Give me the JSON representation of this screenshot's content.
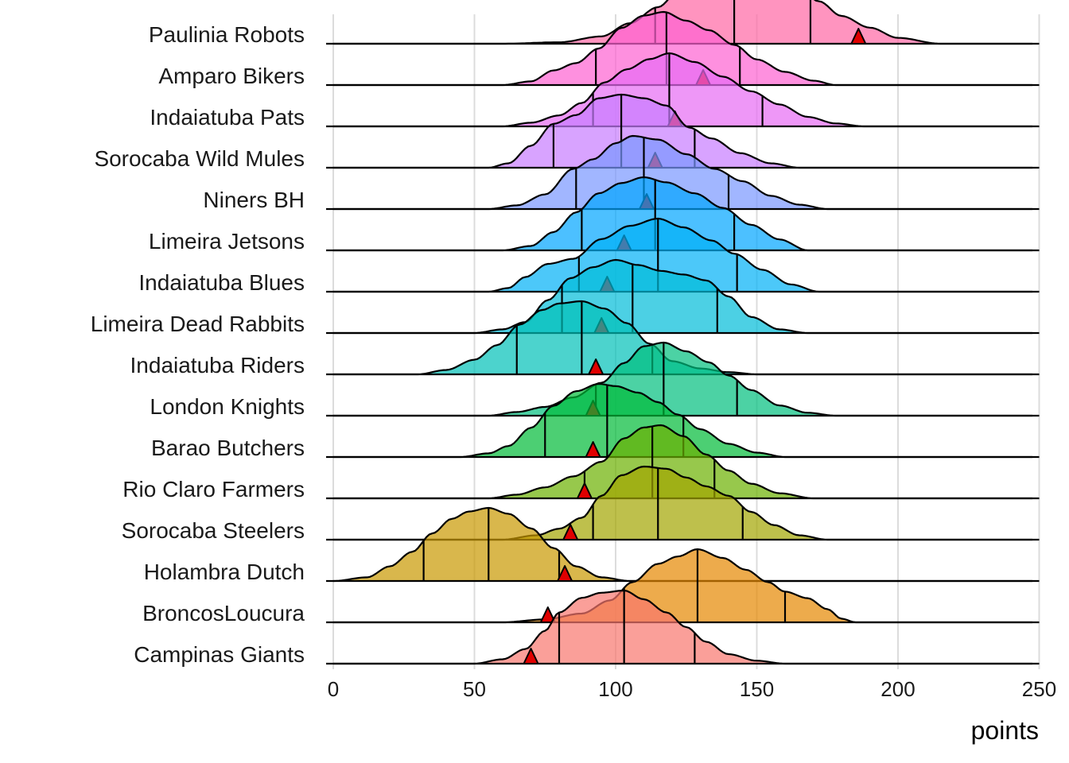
{
  "chart_data": {
    "type": "ridgeline",
    "xlabel": "points",
    "ylabel": "",
    "xlim": [
      0,
      250
    ],
    "x_ticks": [
      "0",
      "50",
      "100",
      "150",
      "200",
      "250"
    ],
    "series": [
      {
        "name": "Campinas Giants",
        "color": "#F8766D",
        "q25": 80,
        "median": 103,
        "q75": 128,
        "marker": 70,
        "shape": [
          [
            50,
            0
          ],
          [
            60,
            0.06
          ],
          [
            68,
            0.2
          ],
          [
            75,
            0.45
          ],
          [
            80,
            0.7
          ],
          [
            88,
            0.9
          ],
          [
            95,
            0.97
          ],
          [
            103,
            1.0
          ],
          [
            110,
            0.88
          ],
          [
            118,
            0.7
          ],
          [
            125,
            0.5
          ],
          [
            132,
            0.3
          ],
          [
            140,
            0.13
          ],
          [
            150,
            0.04
          ],
          [
            160,
            0
          ]
        ]
      },
      {
        "name": "BroncosLoucura",
        "color": "#E58700",
        "q25": 103,
        "median": 129,
        "q75": 160,
        "marker": 76,
        "shape": [
          [
            60,
            0
          ],
          [
            75,
            0.04
          ],
          [
            88,
            0.12
          ],
          [
            98,
            0.3
          ],
          [
            106,
            0.55
          ],
          [
            115,
            0.8
          ],
          [
            122,
            0.9
          ],
          [
            129,
            1.0
          ],
          [
            138,
            0.88
          ],
          [
            146,
            0.72
          ],
          [
            154,
            0.55
          ],
          [
            160,
            0.42
          ],
          [
            168,
            0.33
          ],
          [
            175,
            0.18
          ],
          [
            180,
            0.05
          ],
          [
            185,
            0
          ]
        ]
      },
      {
        "name": "Holambra Dutch",
        "color": "#C99800",
        "q25": 32,
        "median": 55,
        "q75": 80,
        "marker": 82,
        "shape": [
          [
            0,
            0
          ],
          [
            12,
            0.05
          ],
          [
            20,
            0.2
          ],
          [
            28,
            0.4
          ],
          [
            35,
            0.65
          ],
          [
            42,
            0.85
          ],
          [
            48,
            0.95
          ],
          [
            55,
            1.0
          ],
          [
            62,
            0.92
          ],
          [
            70,
            0.72
          ],
          [
            78,
            0.45
          ],
          [
            86,
            0.2
          ],
          [
            95,
            0.05
          ],
          [
            105,
            0
          ]
        ]
      },
      {
        "name": "Sorocaba Steelers",
        "color": "#A3A500",
        "q25": 92,
        "median": 115,
        "q75": 145,
        "marker": 84,
        "shape": [
          [
            60,
            0
          ],
          [
            72,
            0.06
          ],
          [
            80,
            0.15
          ],
          [
            88,
            0.3
          ],
          [
            95,
            0.6
          ],
          [
            102,
            0.88
          ],
          [
            110,
            1.0
          ],
          [
            118,
            0.97
          ],
          [
            125,
            0.85
          ],
          [
            132,
            0.73
          ],
          [
            140,
            0.6
          ],
          [
            148,
            0.38
          ],
          [
            156,
            0.2
          ],
          [
            165,
            0.06
          ],
          [
            175,
            0
          ]
        ]
      },
      {
        "name": "Rio Claro Farmers",
        "color": "#6BB100",
        "q25": 89,
        "median": 113,
        "q75": 135,
        "marker": 89,
        "shape": [
          [
            55,
            0
          ],
          [
            65,
            0.05
          ],
          [
            75,
            0.15
          ],
          [
            85,
            0.3
          ],
          [
            95,
            0.5
          ],
          [
            103,
            0.82
          ],
          [
            110,
            0.97
          ],
          [
            116,
            1.0
          ],
          [
            124,
            0.85
          ],
          [
            132,
            0.6
          ],
          [
            140,
            0.38
          ],
          [
            148,
            0.2
          ],
          [
            158,
            0.07
          ],
          [
            170,
            0
          ]
        ]
      },
      {
        "name": "Barao Butchers",
        "color": "#00BA38",
        "q25": 75,
        "median": 97,
        "q75": 124,
        "marker": 92,
        "shape": [
          [
            45,
            0
          ],
          [
            55,
            0.05
          ],
          [
            62,
            0.15
          ],
          [
            70,
            0.4
          ],
          [
            78,
            0.7
          ],
          [
            86,
            0.9
          ],
          [
            94,
            1.0
          ],
          [
            100,
            0.97
          ],
          [
            108,
            0.88
          ],
          [
            115,
            0.75
          ],
          [
            122,
            0.58
          ],
          [
            130,
            0.38
          ],
          [
            140,
            0.18
          ],
          [
            150,
            0.06
          ],
          [
            160,
            0
          ]
        ]
      },
      {
        "name": "London Knights",
        "color": "#00BF7D",
        "q25": 93,
        "median": 117,
        "q75": 143,
        "marker": 92,
        "shape": [
          [
            55,
            0
          ],
          [
            65,
            0.05
          ],
          [
            75,
            0.12
          ],
          [
            85,
            0.25
          ],
          [
            95,
            0.45
          ],
          [
            103,
            0.72
          ],
          [
            110,
            0.95
          ],
          [
            117,
            1.0
          ],
          [
            125,
            0.88
          ],
          [
            133,
            0.73
          ],
          [
            140,
            0.55
          ],
          [
            148,
            0.35
          ],
          [
            158,
            0.14
          ],
          [
            168,
            0.04
          ],
          [
            178,
            0
          ]
        ]
      },
      {
        "name": "Indaiatuba Riders",
        "color": "#00C0B8",
        "q25": 65,
        "median": 88,
        "q75": 113,
        "marker": 93,
        "shape": [
          [
            30,
            0
          ],
          [
            40,
            0.06
          ],
          [
            50,
            0.2
          ],
          [
            58,
            0.4
          ],
          [
            66,
            0.68
          ],
          [
            74,
            0.88
          ],
          [
            80,
            0.97
          ],
          [
            88,
            1.0
          ],
          [
            96,
            0.9
          ],
          [
            104,
            0.7
          ],
          [
            112,
            0.42
          ],
          [
            120,
            0.18
          ],
          [
            130,
            0.08
          ],
          [
            140,
            0.03
          ],
          [
            150,
            0
          ]
        ]
      },
      {
        "name": "Limeira Dead Rabbits",
        "color": "#00BCD8",
        "q25": 81,
        "median": 106,
        "q75": 136,
        "marker": 95,
        "shape": [
          [
            50,
            0
          ],
          [
            60,
            0.05
          ],
          [
            68,
            0.15
          ],
          [
            76,
            0.45
          ],
          [
            84,
            0.75
          ],
          [
            92,
            0.9
          ],
          [
            100,
            1.0
          ],
          [
            108,
            0.93
          ],
          [
            116,
            0.85
          ],
          [
            124,
            0.8
          ],
          [
            132,
            0.72
          ],
          [
            140,
            0.5
          ],
          [
            148,
            0.22
          ],
          [
            158,
            0.05
          ],
          [
            168,
            0
          ]
        ]
      },
      {
        "name": "Indaiatuba Blues",
        "color": "#00B0F6",
        "q25": 87,
        "median": 115,
        "q75": 143,
        "marker": 97,
        "shape": [
          [
            55,
            0
          ],
          [
            62,
            0.05
          ],
          [
            68,
            0.2
          ],
          [
            76,
            0.38
          ],
          [
            85,
            0.45
          ],
          [
            95,
            0.72
          ],
          [
            105,
            0.9
          ],
          [
            115,
            1.0
          ],
          [
            124,
            0.88
          ],
          [
            134,
            0.7
          ],
          [
            142,
            0.52
          ],
          [
            152,
            0.3
          ],
          [
            162,
            0.1
          ],
          [
            172,
            0
          ]
        ]
      },
      {
        "name": "Limeira Jetsons",
        "color": "#00A5FF",
        "q25": 88,
        "median": 114,
        "q75": 142,
        "marker": 103,
        "shape": [
          [
            60,
            0
          ],
          [
            70,
            0.06
          ],
          [
            78,
            0.25
          ],
          [
            86,
            0.52
          ],
          [
            94,
            0.78
          ],
          [
            102,
            0.92
          ],
          [
            110,
            1.0
          ],
          [
            118,
            0.93
          ],
          [
            128,
            0.78
          ],
          [
            138,
            0.58
          ],
          [
            148,
            0.35
          ],
          [
            158,
            0.15
          ],
          [
            168,
            0
          ]
        ]
      },
      {
        "name": "Niners BH",
        "color": "#7997FF",
        "q25": 86,
        "median": 110,
        "q75": 140,
        "marker": 111,
        "shape": [
          [
            55,
            0
          ],
          [
            65,
            0.05
          ],
          [
            75,
            0.2
          ],
          [
            85,
            0.55
          ],
          [
            92,
            0.68
          ],
          [
            100,
            0.9
          ],
          [
            106,
            1.0
          ],
          [
            115,
            0.95
          ],
          [
            125,
            0.75
          ],
          [
            135,
            0.55
          ],
          [
            145,
            0.38
          ],
          [
            155,
            0.18
          ],
          [
            165,
            0.06
          ],
          [
            175,
            0
          ]
        ]
      },
      {
        "name": "Sorocaba Wild Mules",
        "color": "#C77CFF",
        "q25": 78,
        "median": 102,
        "q75": 128,
        "marker": 114,
        "shape": [
          [
            55,
            0
          ],
          [
            62,
            0.06
          ],
          [
            70,
            0.3
          ],
          [
            78,
            0.6
          ],
          [
            86,
            0.72
          ],
          [
            94,
            0.95
          ],
          [
            102,
            1.0
          ],
          [
            110,
            0.95
          ],
          [
            118,
            0.85
          ],
          [
            126,
            0.55
          ],
          [
            134,
            0.4
          ],
          [
            144,
            0.2
          ],
          [
            155,
            0.06
          ],
          [
            165,
            0
          ]
        ]
      },
      {
        "name": "Indaiatuba Pats",
        "color": "#E76BF3",
        "q25": 92,
        "median": 119,
        "q75": 152,
        "marker": 121,
        "shape": [
          [
            60,
            0
          ],
          [
            70,
            0.05
          ],
          [
            80,
            0.15
          ],
          [
            88,
            0.32
          ],
          [
            96,
            0.6
          ],
          [
            104,
            0.78
          ],
          [
            112,
            0.92
          ],
          [
            119,
            1.0
          ],
          [
            128,
            0.88
          ],
          [
            138,
            0.68
          ],
          [
            148,
            0.48
          ],
          [
            158,
            0.3
          ],
          [
            168,
            0.13
          ],
          [
            178,
            0.04
          ],
          [
            188,
            0
          ]
        ]
      },
      {
        "name": "Amparo Bikers",
        "color": "#FD61D1",
        "q25": 93,
        "median": 118,
        "q75": 144,
        "marker": 131,
        "shape": [
          [
            60,
            0
          ],
          [
            70,
            0.05
          ],
          [
            78,
            0.2
          ],
          [
            86,
            0.3
          ],
          [
            94,
            0.5
          ],
          [
            102,
            0.78
          ],
          [
            110,
            0.95
          ],
          [
            117,
            1.0
          ],
          [
            125,
            0.88
          ],
          [
            133,
            0.75
          ],
          [
            142,
            0.55
          ],
          [
            150,
            0.35
          ],
          [
            160,
            0.18
          ],
          [
            170,
            0.06
          ],
          [
            178,
            0
          ]
        ]
      },
      {
        "name": "Paulinia Robots",
        "color": "#FF67A4",
        "q25": 114,
        "median": 142,
        "q75": 169,
        "marker": 186,
        "shape": [
          [
            60,
            0
          ],
          [
            80,
            0.02
          ],
          [
            95,
            0.1
          ],
          [
            105,
            0.28
          ],
          [
            115,
            0.5
          ],
          [
            123,
            0.75
          ],
          [
            130,
            0.95
          ],
          [
            137,
            1.0
          ],
          [
            145,
            1.0
          ],
          [
            155,
            0.98
          ],
          [
            163,
            0.85
          ],
          [
            172,
            0.58
          ],
          [
            180,
            0.38
          ],
          [
            190,
            0.22
          ],
          [
            200,
            0.08
          ],
          [
            215,
            0
          ]
        ]
      }
    ]
  }
}
